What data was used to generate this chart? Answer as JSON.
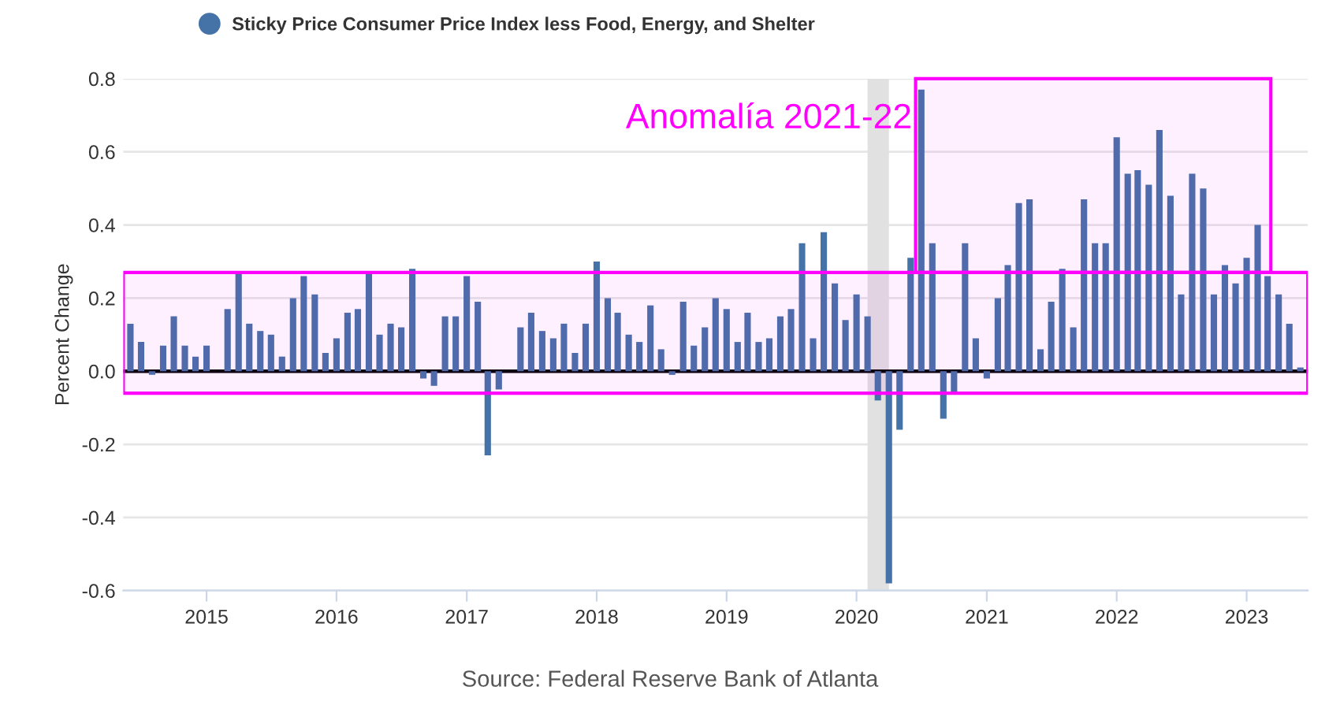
{
  "chart_data": {
    "type": "bar",
    "series": [
      {
        "name": "Sticky Price Consumer Price Index less Food, Energy, and Shelter",
        "color": "#4572a7",
        "values": [
          0.13,
          0.08,
          -0.01,
          0.07,
          0.15,
          0.07,
          0.04,
          0.07,
          0.0,
          0.17,
          0.27,
          0.13,
          0.11,
          0.1,
          0.04,
          0.2,
          0.26,
          0.21,
          0.05,
          0.09,
          0.16,
          0.17,
          0.27,
          0.1,
          0.13,
          0.12,
          0.28,
          -0.02,
          -0.04,
          0.15,
          0.15,
          0.26,
          0.19,
          -0.23,
          -0.05,
          0.0,
          0.12,
          0.16,
          0.11,
          0.09,
          0.13,
          0.05,
          0.13,
          0.3,
          0.2,
          0.16,
          0.1,
          0.08,
          0.18,
          0.06,
          -0.01,
          0.19,
          0.07,
          0.12,
          0.2,
          0.17,
          0.08,
          0.16,
          0.08,
          0.09,
          0.15,
          0.17,
          0.35,
          0.09,
          0.38,
          0.24,
          0.14,
          0.21,
          0.15,
          -0.08,
          -0.58,
          -0.16,
          0.31,
          0.77,
          0.35,
          -0.13,
          -0.06,
          0.35,
          0.09,
          -0.02,
          0.2,
          0.29,
          0.46,
          0.47,
          0.06,
          0.19,
          0.28,
          0.12,
          0.47,
          0.35,
          0.35,
          0.64,
          0.54,
          0.55,
          0.51,
          0.66,
          0.48,
          0.21,
          0.54,
          0.5,
          0.21,
          0.29,
          0.24,
          0.31,
          0.4,
          0.26,
          0.21,
          0.13,
          0.01
        ]
      }
    ],
    "x": [
      "2014-06",
      "2014-07",
      "2014-08",
      "2014-09",
      "2014-10",
      "2014-11",
      "2014-12",
      "2015-01",
      "2015-02",
      "2015-03",
      "2015-04",
      "2015-05",
      "2015-06",
      "2015-07",
      "2015-08",
      "2015-09",
      "2015-10",
      "2015-11",
      "2015-12",
      "2016-01",
      "2016-02",
      "2016-03",
      "2016-04",
      "2016-05",
      "2016-06",
      "2016-07",
      "2016-08",
      "2016-09",
      "2016-10",
      "2016-11",
      "2016-12",
      "2017-01",
      "2017-02",
      "2017-03",
      "2017-04",
      "2017-05",
      "2017-06",
      "2017-07",
      "2017-08",
      "2017-09",
      "2017-10",
      "2017-11",
      "2017-12",
      "2018-01",
      "2018-02",
      "2018-03",
      "2018-04",
      "2018-05",
      "2018-06",
      "2018-07",
      "2018-08",
      "2018-09",
      "2018-10",
      "2018-11",
      "2018-12",
      "2019-01",
      "2019-02",
      "2019-03",
      "2019-04",
      "2019-05",
      "2019-06",
      "2019-07",
      "2019-08",
      "2019-09",
      "2019-10",
      "2019-11",
      "2019-12",
      "2020-01",
      "2020-02",
      "2020-03",
      "2020-04",
      "2020-05",
      "2020-06",
      "2020-07",
      "2020-08",
      "2020-09",
      "2020-10",
      "2020-11",
      "2020-12",
      "2021-01",
      "2021-02",
      "2021-03",
      "2021-04",
      "2021-05",
      "2021-06",
      "2021-07",
      "2021-08",
      "2021-09",
      "2021-10",
      "2021-11",
      "2021-12",
      "2022-01",
      "2022-02",
      "2022-03",
      "2022-04",
      "2022-05",
      "2022-06",
      "2022-07",
      "2022-08",
      "2022-09",
      "2022-10",
      "2022-11",
      "2022-12",
      "2023-01",
      "2023-02",
      "2023-03",
      "2023-04",
      "2023-05",
      "2023-06"
    ],
    "ylabel": "Percent Change",
    "ylim": [
      -0.6,
      0.8
    ],
    "yticks": [
      -0.6,
      -0.4,
      -0.2,
      {
        "value": 0,
        "label": "0.0"
      },
      0.2,
      0.4,
      0.6,
      0.8
    ],
    "xlim": [
      "2014-05-12",
      "2023-06-22"
    ],
    "xticks": [
      "2015",
      "2016",
      "2017",
      "2018",
      "2019",
      "2020",
      "2021",
      "2022",
      "2023"
    ],
    "grid": "y",
    "legend": "top",
    "ref_lines": [
      {
        "axis": "y",
        "value": 0,
        "color": "#000000"
      }
    ],
    "bands": [
      {
        "axis": "x",
        "from": "2020-02-01",
        "to": "2020-04-01",
        "color": "#e1e1e1"
      },
      {
        "axis": "y",
        "from": -0.06,
        "to": 0.27,
        "color": "#ff00ff"
      },
      {
        "axis": "x",
        "from": "2020-06-15",
        "to": "2023-03-10",
        "color": "#ff00ff",
        "label": "Anomalía 2021-22"
      }
    ],
    "annotations": [
      "Source: Federal Reserve Bank of Atlanta"
    ]
  }
}
